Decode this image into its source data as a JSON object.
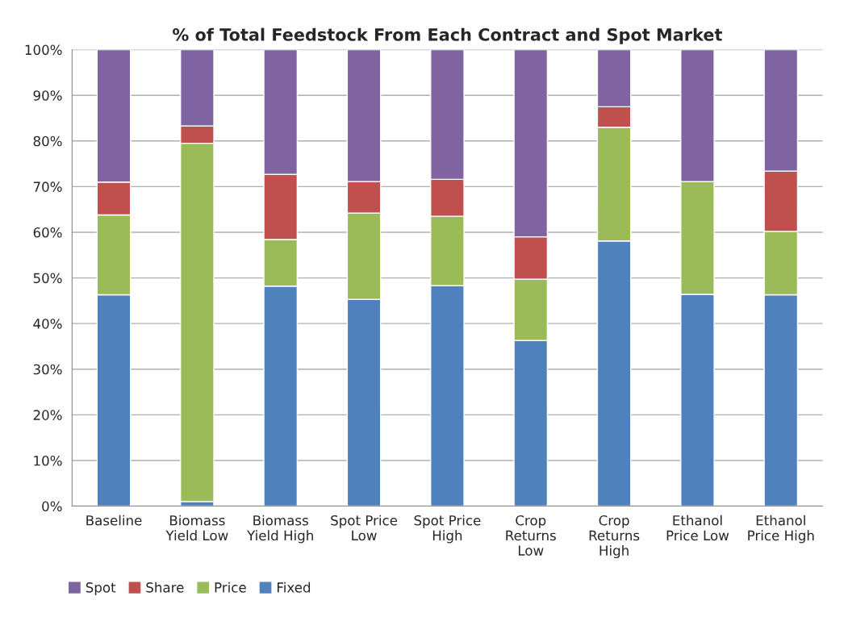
{
  "chart_data": {
    "type": "bar",
    "title": "% of Total Feedstock From Each Contract and Spot Market",
    "categories": [
      "Baseline",
      "Biomass\nYield Low",
      "Biomass\nYield High",
      "Spot Price\nLow",
      "Spot Price\nHigh",
      "Crop\nReturns\nLow",
      "Crop\nReturns\nHigh",
      "Ethanol\nPrice Low",
      "Ethanol\nPrice High"
    ],
    "stacked": true,
    "series": [
      {
        "name": "Fixed",
        "color": "#4f81bd",
        "values": [
          46.3,
          1.0,
          48.2,
          45.3,
          48.3,
          36.3,
          58.1,
          46.4,
          46.3
        ]
      },
      {
        "name": "Price",
        "color": "#9bbb59",
        "values": [
          17.5,
          78.5,
          10.2,
          18.9,
          15.2,
          13.4,
          24.9,
          24.7,
          13.9
        ]
      },
      {
        "name": "Share",
        "color": "#c0504d",
        "values": [
          7.2,
          3.8,
          14.3,
          6.9,
          8.1,
          9.3,
          4.5,
          0,
          13.2
        ]
      },
      {
        "name": "Spot",
        "color": "#8064a2",
        "values": [
          29.0,
          16.7,
          27.3,
          28.9,
          28.4,
          41.0,
          12.5,
          28.9,
          26.6
        ]
      }
    ],
    "ylim": [
      0,
      100
    ],
    "yticks": [
      {
        "value": 0,
        "label": "0%"
      },
      {
        "value": 10,
        "label": "10%"
      },
      {
        "value": 20,
        "label": "20%"
      },
      {
        "value": 30,
        "label": "30%"
      },
      {
        "value": 40,
        "label": "40%"
      },
      {
        "value": 50,
        "label": "50%"
      },
      {
        "value": 60,
        "label": "60%"
      },
      {
        "value": 70,
        "label": "70%"
      },
      {
        "value": 80,
        "label": "80%"
      },
      {
        "value": 90,
        "label": "90%"
      },
      {
        "value": 100,
        "label": "100%"
      }
    ],
    "grid": "y",
    "legend": "bottom left"
  }
}
